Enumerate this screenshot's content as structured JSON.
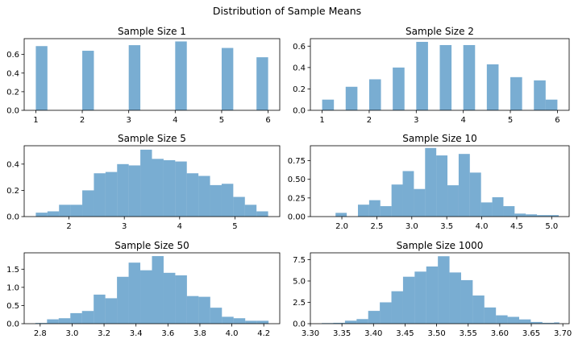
{
  "figure": {
    "title": "Distribution of Sample Means"
  },
  "colors": {
    "bar": "#1f77b4",
    "bar_alpha": 0.6
  },
  "chart_data": [
    {
      "type": "bar",
      "title": "Sample Size 1",
      "xlim": [
        0.75,
        6.25
      ],
      "ylim": [
        0,
        0.77
      ],
      "xticks": [
        1,
        2,
        3,
        4,
        5,
        6
      ],
      "yticks": [
        0.0,
        0.2,
        0.4,
        0.6
      ],
      "xtick_labels": [
        "1",
        "2",
        "3",
        "4",
        "5",
        "6"
      ],
      "ytick_labels": [
        "0.0",
        "0.2",
        "0.4",
        "0.6"
      ],
      "bins": [
        {
          "x0": 1.0,
          "x1": 1.25,
          "v": 0.69
        },
        {
          "x0": 2.0,
          "x1": 2.25,
          "v": 0.64
        },
        {
          "x0": 3.0,
          "x1": 3.25,
          "v": 0.7
        },
        {
          "x0": 4.0,
          "x1": 4.25,
          "v": 0.74
        },
        {
          "x0": 5.0,
          "x1": 5.25,
          "v": 0.67
        },
        {
          "x0": 5.75,
          "x1": 6.0,
          "v": 0.57
        }
      ]
    },
    {
      "type": "bar",
      "title": "Sample Size 2",
      "xlim": [
        0.75,
        6.25
      ],
      "ylim": [
        0,
        0.67
      ],
      "xticks": [
        1,
        2,
        3,
        4,
        5,
        6
      ],
      "yticks": [
        0.0,
        0.2,
        0.4,
        0.6
      ],
      "xtick_labels": [
        "1",
        "2",
        "3",
        "4",
        "5",
        "6"
      ],
      "ytick_labels": [
        "0.0",
        "0.2",
        "0.4",
        "0.6"
      ],
      "bins": [
        {
          "x0": 1.0,
          "x1": 1.25,
          "v": 0.1
        },
        {
          "x0": 1.5,
          "x1": 1.75,
          "v": 0.22
        },
        {
          "x0": 2.0,
          "x1": 2.25,
          "v": 0.29
        },
        {
          "x0": 2.5,
          "x1": 2.75,
          "v": 0.4
        },
        {
          "x0": 3.0,
          "x1": 3.25,
          "v": 0.64
        },
        {
          "x0": 3.5,
          "x1": 3.75,
          "v": 0.61
        },
        {
          "x0": 4.0,
          "x1": 4.25,
          "v": 0.61
        },
        {
          "x0": 4.5,
          "x1": 4.75,
          "v": 0.43
        },
        {
          "x0": 5.0,
          "x1": 5.25,
          "v": 0.31
        },
        {
          "x0": 5.5,
          "x1": 5.75,
          "v": 0.28
        },
        {
          "x0": 5.75,
          "x1": 6.0,
          "v": 0.1
        }
      ]
    },
    {
      "type": "bar",
      "title": "Sample Size 5",
      "xlim": [
        1.19,
        5.81
      ],
      "ylim": [
        0,
        0.54
      ],
      "xticks": [
        2,
        3,
        4,
        5
      ],
      "yticks": [
        0.0,
        0.2,
        0.4
      ],
      "xtick_labels": [
        "2",
        "3",
        "4",
        "5"
      ],
      "ytick_labels": [
        "0.0",
        "0.2",
        "0.4"
      ],
      "bins": [
        {
          "x0": 1.4,
          "x1": 1.61,
          "v": 0.03
        },
        {
          "x0": 1.61,
          "x1": 1.82,
          "v": 0.04
        },
        {
          "x0": 1.82,
          "x1": 2.03,
          "v": 0.09
        },
        {
          "x0": 2.03,
          "x1": 2.24,
          "v": 0.09
        },
        {
          "x0": 2.24,
          "x1": 2.45,
          "v": 0.2
        },
        {
          "x0": 2.45,
          "x1": 2.66,
          "v": 0.33
        },
        {
          "x0": 2.66,
          "x1": 2.87,
          "v": 0.34
        },
        {
          "x0": 2.87,
          "x1": 3.08,
          "v": 0.4
        },
        {
          "x0": 3.08,
          "x1": 3.29,
          "v": 0.39
        },
        {
          "x0": 3.29,
          "x1": 3.5,
          "v": 0.51
        },
        {
          "x0": 3.5,
          "x1": 3.71,
          "v": 0.44
        },
        {
          "x0": 3.71,
          "x1": 3.92,
          "v": 0.43
        },
        {
          "x0": 3.92,
          "x1": 4.13,
          "v": 0.42
        },
        {
          "x0": 4.13,
          "x1": 4.34,
          "v": 0.33
        },
        {
          "x0": 4.34,
          "x1": 4.55,
          "v": 0.31
        },
        {
          "x0": 4.55,
          "x1": 4.76,
          "v": 0.24
        },
        {
          "x0": 4.76,
          "x1": 4.97,
          "v": 0.25
        },
        {
          "x0": 4.97,
          "x1": 5.18,
          "v": 0.15
        },
        {
          "x0": 5.18,
          "x1": 5.39,
          "v": 0.09
        },
        {
          "x0": 5.39,
          "x1": 5.6,
          "v": 0.04
        }
      ]
    },
    {
      "type": "bar",
      "title": "Sample Size 10",
      "xlim": [
        1.55,
        5.25
      ],
      "ylim": [
        0,
        0.95
      ],
      "xticks": [
        2.0,
        2.5,
        3.0,
        3.5,
        4.0,
        4.5,
        5.0
      ],
      "yticks": [
        0.0,
        0.25,
        0.5,
        0.75
      ],
      "xtick_labels": [
        "2.0",
        "2.5",
        "3.0",
        "3.5",
        "4.0",
        "4.5",
        "5.0"
      ],
      "ytick_labels": [
        "0.00",
        "0.25",
        "0.50",
        "0.75"
      ],
      "bins": [
        {
          "x0": 1.75,
          "x1": 1.91,
          "v": 0.0
        },
        {
          "x0": 1.91,
          "x1": 2.07,
          "v": 0.05
        },
        {
          "x0": 2.07,
          "x1": 2.23,
          "v": 0.0
        },
        {
          "x0": 2.23,
          "x1": 2.39,
          "v": 0.16
        },
        {
          "x0": 2.39,
          "x1": 2.55,
          "v": 0.22
        },
        {
          "x0": 2.55,
          "x1": 2.71,
          "v": 0.14
        },
        {
          "x0": 2.71,
          "x1": 2.87,
          "v": 0.43
        },
        {
          "x0": 2.87,
          "x1": 3.03,
          "v": 0.61
        },
        {
          "x0": 3.03,
          "x1": 3.19,
          "v": 0.37
        },
        {
          "x0": 3.19,
          "x1": 3.35,
          "v": 0.92
        },
        {
          "x0": 3.35,
          "x1": 3.51,
          "v": 0.82
        },
        {
          "x0": 3.51,
          "x1": 3.67,
          "v": 0.42
        },
        {
          "x0": 3.67,
          "x1": 3.83,
          "v": 0.84
        },
        {
          "x0": 3.83,
          "x1": 3.99,
          "v": 0.59
        },
        {
          "x0": 3.99,
          "x1": 4.15,
          "v": 0.19
        },
        {
          "x0": 4.15,
          "x1": 4.31,
          "v": 0.26
        },
        {
          "x0": 4.31,
          "x1": 4.47,
          "v": 0.14
        },
        {
          "x0": 4.47,
          "x1": 4.63,
          "v": 0.04
        },
        {
          "x0": 4.63,
          "x1": 4.79,
          "v": 0.03
        },
        {
          "x0": 4.79,
          "x1": 4.95,
          "v": 0.02
        },
        {
          "x0": 4.95,
          "x1": 5.1,
          "v": 0.02
        }
      ]
    },
    {
      "type": "bar",
      "title": "Sample Size 50",
      "xlim": [
        2.7,
        4.3
      ],
      "ylim": [
        0,
        1.95
      ],
      "xticks": [
        2.8,
        3.0,
        3.2,
        3.4,
        3.6,
        3.8,
        4.0,
        4.2
      ],
      "yticks": [
        0.0,
        0.5,
        1.0,
        1.5
      ],
      "xtick_labels": [
        "2.8",
        "3.0",
        "3.2",
        "3.4",
        "3.6",
        "3.8",
        "4.0",
        "4.2"
      ],
      "ytick_labels": [
        "0.0",
        "0.5",
        "1.0",
        "1.5"
      ],
      "bins": [
        {
          "x0": 2.77,
          "x1": 2.843,
          "v": 0.02
        },
        {
          "x0": 2.843,
          "x1": 2.916,
          "v": 0.12
        },
        {
          "x0": 2.916,
          "x1": 2.989,
          "v": 0.15
        },
        {
          "x0": 2.989,
          "x1": 3.062,
          "v": 0.29
        },
        {
          "x0": 3.062,
          "x1": 3.135,
          "v": 0.35
        },
        {
          "x0": 3.135,
          "x1": 3.208,
          "v": 0.8
        },
        {
          "x0": 3.208,
          "x1": 3.281,
          "v": 0.7
        },
        {
          "x0": 3.281,
          "x1": 3.354,
          "v": 1.29
        },
        {
          "x0": 3.354,
          "x1": 3.427,
          "v": 1.68
        },
        {
          "x0": 3.427,
          "x1": 3.5,
          "v": 1.47
        },
        {
          "x0": 3.5,
          "x1": 3.573,
          "v": 1.86
        },
        {
          "x0": 3.573,
          "x1": 3.646,
          "v": 1.4
        },
        {
          "x0": 3.646,
          "x1": 3.719,
          "v": 1.33
        },
        {
          "x0": 3.719,
          "x1": 3.792,
          "v": 0.76
        },
        {
          "x0": 3.792,
          "x1": 3.865,
          "v": 0.74
        },
        {
          "x0": 3.865,
          "x1": 3.938,
          "v": 0.44
        },
        {
          "x0": 3.938,
          "x1": 4.011,
          "v": 0.19
        },
        {
          "x0": 4.011,
          "x1": 4.084,
          "v": 0.15
        },
        {
          "x0": 4.084,
          "x1": 4.157,
          "v": 0.08
        },
        {
          "x0": 4.157,
          "x1": 4.23,
          "v": 0.08
        }
      ]
    },
    {
      "type": "bar",
      "title": "Sample Size 1000",
      "xlim": [
        3.3,
        3.71
      ],
      "ylim": [
        0,
        8.3
      ],
      "xticks": [
        3.3,
        3.35,
        3.4,
        3.45,
        3.5,
        3.55,
        3.6,
        3.65,
        3.7
      ],
      "yticks": [
        0.0,
        2.5,
        5.0,
        7.5
      ],
      "xtick_labels": [
        "3.30",
        "3.35",
        "3.40",
        "3.45",
        "3.50",
        "3.55",
        "3.60",
        "3.65",
        "3.70"
      ],
      "ytick_labels": [
        "0.0",
        "2.5",
        "5.0",
        "7.5"
      ],
      "bins": [
        {
          "x0": 3.318,
          "x1": 3.3364,
          "v": 0.07
        },
        {
          "x0": 3.3364,
          "x1": 3.3548,
          "v": 0.1
        },
        {
          "x0": 3.3548,
          "x1": 3.3732,
          "v": 0.35
        },
        {
          "x0": 3.3732,
          "x1": 3.3916,
          "v": 0.54
        },
        {
          "x0": 3.3916,
          "x1": 3.41,
          "v": 1.5
        },
        {
          "x0": 3.41,
          "x1": 3.4284,
          "v": 2.5
        },
        {
          "x0": 3.4284,
          "x1": 3.4468,
          "v": 3.8
        },
        {
          "x0": 3.4468,
          "x1": 3.4652,
          "v": 5.5
        },
        {
          "x0": 3.4652,
          "x1": 3.4836,
          "v": 6.1
        },
        {
          "x0": 3.4836,
          "x1": 3.502,
          "v": 6.7
        },
        {
          "x0": 3.502,
          "x1": 3.5204,
          "v": 7.9
        },
        {
          "x0": 3.5204,
          "x1": 3.5388,
          "v": 6.0
        },
        {
          "x0": 3.5388,
          "x1": 3.5572,
          "v": 5.1
        },
        {
          "x0": 3.5572,
          "x1": 3.5756,
          "v": 3.3
        },
        {
          "x0": 3.5756,
          "x1": 3.594,
          "v": 1.9
        },
        {
          "x0": 3.594,
          "x1": 3.6124,
          "v": 0.98
        },
        {
          "x0": 3.6124,
          "x1": 3.6308,
          "v": 0.8
        },
        {
          "x0": 3.6308,
          "x1": 3.6492,
          "v": 0.5
        },
        {
          "x0": 3.6492,
          "x1": 3.6676,
          "v": 0.2
        },
        {
          "x0": 3.6676,
          "x1": 3.686,
          "v": 0.1
        },
        {
          "x0": 3.686,
          "x1": 3.6944,
          "v": 0.15
        }
      ]
    }
  ]
}
